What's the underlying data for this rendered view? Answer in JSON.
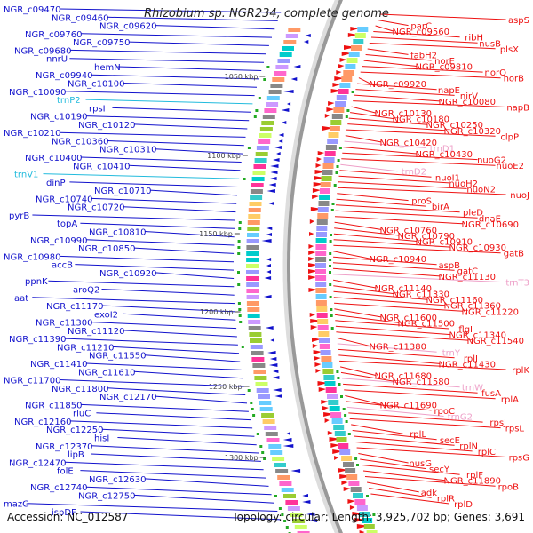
{
  "title": "Rhizobium sp. NGR234, complete genome",
  "accession": "Accession: NC_012587",
  "topology": "Topology: circular; Length: 3,925,702 bp; Genes: 3,691",
  "colors": {
    "reverse_strand": "#1111cc",
    "forward_strand": "#ee1111",
    "trna_reverse": "#22bbdd",
    "trna_forward": "#eea0c8",
    "tick": "#444444",
    "backbone": "#999999"
  },
  "ticks": [
    "1050 kbp",
    "1100 kbp",
    "1150 kbp",
    "1200 kbp",
    "1250 kbp",
    "1300 kbp"
  ],
  "left_labels": [
    "NGR_c09470",
    "NGR_c09460",
    "NGR_c09620",
    "NGR_c09760",
    "NGR_c09750",
    "NGR_c09680",
    "nnrU",
    "hemN",
    "NGR_c09940",
    "NGR_c10100",
    "NGR_c10090",
    "trnP2",
    "rpsI",
    "NGR_c10190",
    "NGR_c10120",
    "NGR_c10210",
    "NGR_c10360",
    "NGR_c10310",
    "NGR_c10400",
    "NGR_c10410",
    "trnV1",
    "dinP",
    "NGR_c10710",
    "NGR_c10740",
    "NGR_c10720",
    "pyrB",
    "topA",
    "NGR_c10810",
    "NGR_c10990",
    "NGR_c10850",
    "NGR_c10980",
    "accB",
    "NGR_c10920",
    "ppnK",
    "aroQ2",
    "aat",
    "NGR_c11170",
    "exoI2",
    "NGR_c11300",
    "NGR_c11120",
    "NGR_c11390",
    "NGR_c11210",
    "NGR_c11550",
    "NGR_c11410",
    "NGR_c11610",
    "NGR_c11700",
    "NGR_c11800",
    "NGR_c12170",
    "NGR_c11850",
    "rluC",
    "NGR_c12160",
    "NGR_c12250",
    "hisI",
    "NGR_c12370",
    "lipB",
    "NGR_c12470",
    "folE",
    "NGR_c12630",
    "NGR_c12740",
    "NGR_c12750",
    "mazG",
    "ispDF"
  ],
  "right_labels": [
    "aspS",
    "parC",
    "NGR_c09560",
    "ribH",
    "nusB",
    "plsX",
    "fabH2",
    "norE",
    "NGR_c09810",
    "norQ",
    "norB",
    "NGR_c09920",
    "napE",
    "nirV",
    "NGR_c10080",
    "napB",
    "NGR_c10130",
    "NGR_c10180",
    "NGR_c10250",
    "NGR_c10320",
    "clpP",
    "NGR_c10420",
    "trnD1",
    "NGR_c10430",
    "nuoG2",
    "nuoE2",
    "trnD2",
    "nuoI1",
    "nuoH2",
    "nuoN2",
    "nuoJ",
    "proS",
    "birA",
    "pleD",
    "dnaE",
    "NGR_c10690",
    "NGR_c10760",
    "NGR_c10790",
    "NGR_c10910",
    "NGR_c10930",
    "gatB",
    "NGR_c10940",
    "aspB",
    "gatC",
    "NGR_c11130",
    "trnT3",
    "NGR_c11140",
    "NGR_c11330",
    "NGR_c11160",
    "NGR_c11360",
    "NGR_c11220",
    "NGR_c11600",
    "NGR_c11500",
    "flgI",
    "NGR_c11340",
    "NGR_c11540",
    "NGR_c11380",
    "trnY",
    "rplJ",
    "NGR_c11430",
    "rplK",
    "NGR_c11680",
    "NGR_c11580",
    "trnW",
    "fusA",
    "rplA",
    "NGR_c11690",
    "rpoC",
    "trnG2",
    "rpsJ",
    "rpsL",
    "rplL",
    "secE",
    "rplN",
    "rplC",
    "rpsG",
    "nusG",
    "secY",
    "rplF",
    "NGR_c11890",
    "rpoB",
    "adk",
    "rplR",
    "rplD"
  ]
}
